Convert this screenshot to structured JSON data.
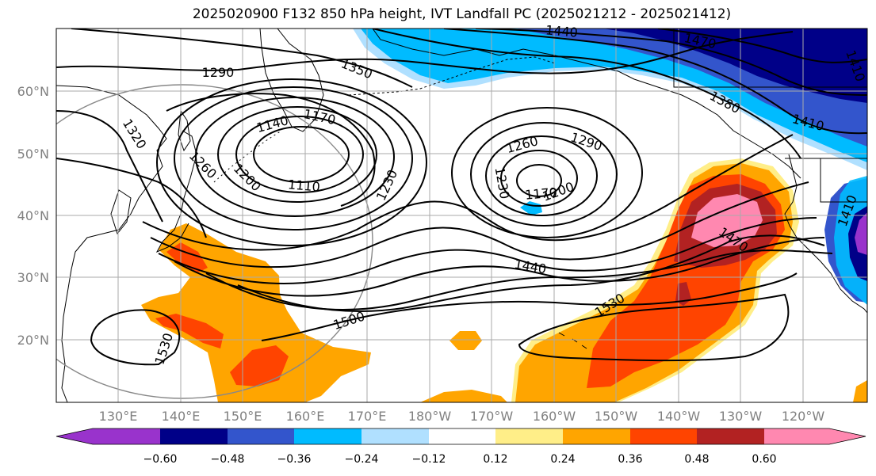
{
  "title": "2025020900 F132 850 hPa height, IVT Landfall PC (2025021212 - 2025021412)",
  "axes": {
    "lon_ticks": [
      "130°E",
      "140°E",
      "150°E",
      "160°E",
      "170°E",
      "180°W",
      "170°W",
      "160°W",
      "150°W",
      "140°W",
      "130°W",
      "120°W"
    ],
    "lat_ticks": [
      "20°N",
      "30°N",
      "40°N",
      "50°N",
      "60°N"
    ]
  },
  "colorbar": {
    "colors": [
      "#9933cc",
      "#000088",
      "#3355cc",
      "#00bbff",
      "#b0e0ff",
      "#ffffff",
      "#ffee88",
      "#ffa500",
      "#ff4400",
      "#b22222",
      "#ff88b0"
    ],
    "tick_labels": [
      "−0.60",
      "−0.48",
      "−0.36",
      "−0.24",
      "−0.12",
      "0.12",
      "0.24",
      "0.36",
      "0.48",
      "0.60"
    ]
  },
  "contour_labels": {
    "c1290a": "1290",
    "c1350": "1350",
    "c1320": "1320",
    "c1140": "1140",
    "c1170a": "1170",
    "c1260a": "1260",
    "c1200a": "1200",
    "c1110": "1110",
    "c1230a": "1230",
    "c1440a": "1440",
    "c1470a": "1470",
    "c1410a": "1410",
    "c1410b": "1410",
    "c1380": "1380",
    "c1260b": "1260",
    "c1290b": "1290",
    "c1230b": "1230",
    "c1170b": "1170",
    "c1200b": "1200",
    "c1440b": "1440",
    "c1470b": "1470",
    "c1500": "1500",
    "c1530a": "1530",
    "c1530b": "1530",
    "c1410c": "1410"
  }
}
